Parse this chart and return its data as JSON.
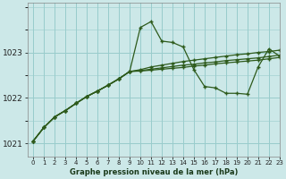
{
  "title": "Graphe pression niveau de la mer (hPa)",
  "bg_color": "#cce8e8",
  "grid_color": "#99cccc",
  "line_color": "#2d5a1b",
  "x_labels": [
    "0",
    "1",
    "2",
    "3",
    "4",
    "5",
    "6",
    "7",
    "8",
    "9",
    "10",
    "11",
    "12",
    "13",
    "14",
    "15",
    "16",
    "17",
    "18",
    "19",
    "20",
    "21",
    "22",
    "23"
  ],
  "ylim": [
    1020.7,
    1024.1
  ],
  "yticks": [
    1021,
    1022,
    1023
  ],
  "xlim": [
    -0.5,
    23
  ],
  "series": [
    [
      1021.05,
      1021.35,
      1021.58,
      1021.72,
      1021.88,
      1022.03,
      1022.15,
      1022.28,
      1022.42,
      1022.58,
      1023.55,
      1023.68,
      1023.25,
      1023.22,
      1023.12,
      1022.62,
      1022.25,
      1022.22,
      1022.1,
      1022.1,
      1022.08,
      1022.68,
      1023.08,
      1022.92
    ],
    [
      1021.05,
      1021.35,
      1021.58,
      1021.72,
      1021.88,
      1022.03,
      1022.15,
      1022.28,
      1022.42,
      1022.58,
      1022.62,
      1022.68,
      1022.72,
      1022.76,
      1022.8,
      1022.83,
      1022.86,
      1022.89,
      1022.92,
      1022.95,
      1022.97,
      1023.0,
      1023.02,
      1023.05
    ],
    [
      1021.05,
      1021.35,
      1021.58,
      1021.72,
      1021.88,
      1022.03,
      1022.15,
      1022.28,
      1022.42,
      1022.58,
      1022.6,
      1022.63,
      1022.66,
      1022.69,
      1022.72,
      1022.74,
      1022.77,
      1022.79,
      1022.82,
      1022.84,
      1022.86,
      1022.88,
      1022.91,
      1022.94
    ],
    [
      1021.05,
      1021.35,
      1021.58,
      1021.72,
      1021.88,
      1022.03,
      1022.15,
      1022.28,
      1022.42,
      1022.58,
      1022.59,
      1022.61,
      1022.63,
      1022.65,
      1022.67,
      1022.7,
      1022.72,
      1022.75,
      1022.77,
      1022.79,
      1022.81,
      1022.83,
      1022.86,
      1022.89
    ]
  ]
}
